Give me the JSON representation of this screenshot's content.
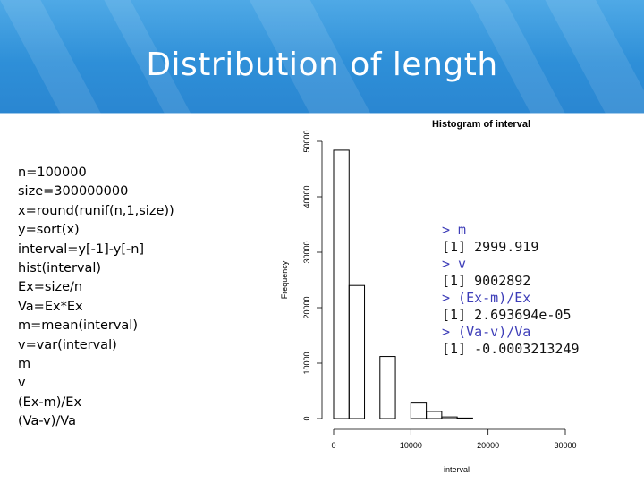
{
  "slide": {
    "title": "Distribution of length"
  },
  "code_lines": [
    "n=100000",
    "size=300000000",
    "x=round(runif(n,1,size))",
    "y=sort(x)",
    "interval=y[-1]-y[-n]",
    "hist(interval)",
    "Ex=size/n",
    "Va=Ex*Ex",
    "m=mean(interval)",
    "v=var(interval)",
    "m",
    "v",
    "(Ex-m)/Ex",
    "(Va-v)/Va"
  ],
  "console_lines": [
    {
      "type": "prompt",
      "text": "> m"
    },
    {
      "type": "output",
      "text": "[1] 2999.919"
    },
    {
      "type": "prompt",
      "text": "> v"
    },
    {
      "type": "output",
      "text": "[1] 9002892"
    },
    {
      "type": "prompt",
      "text": "> (Ex-m)/Ex"
    },
    {
      "type": "output",
      "text": "[1] 2.693694e-05"
    },
    {
      "type": "prompt",
      "text": "> (Va-v)/Va"
    },
    {
      "type": "output",
      "text": "[1] -0.0003213249"
    }
  ],
  "chart_data": {
    "type": "bar",
    "title": "Histogram of interval",
    "xlabel": "interval",
    "ylabel": "Frequency",
    "bin_width": 2000,
    "bins": [
      {
        "start": 0,
        "end": 2000,
        "value": 48400
      },
      {
        "start": 2000,
        "end": 4000,
        "value": 24000
      },
      {
        "start": 4000,
        "end": 6000,
        "value": 0
      },
      {
        "start": 6000,
        "end": 8000,
        "value": 11200
      },
      {
        "start": 8000,
        "end": 10000,
        "value": 0
      },
      {
        "start": 10000,
        "end": 12000,
        "value": 2800
      },
      {
        "start": 12000,
        "end": 14000,
        "value": 1300
      },
      {
        "start": 14000,
        "end": 16000,
        "value": 300
      },
      {
        "start": 16000,
        "end": 18000,
        "value": 100
      }
    ],
    "x_ticks": [
      0,
      10000,
      20000,
      30000
    ],
    "y_ticks": [
      0,
      10000,
      20000,
      30000,
      40000,
      50000
    ],
    "xlim": [
      0,
      30000
    ],
    "ylim": [
      0,
      50000
    ]
  }
}
